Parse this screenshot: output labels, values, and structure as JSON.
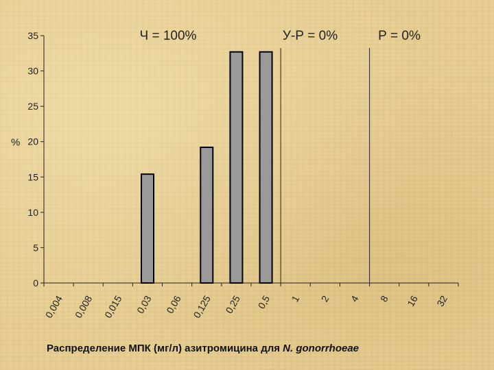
{
  "chart_data": {
    "type": "bar",
    "categories": [
      "0,004",
      "0,008",
      "0,015",
      "0,03",
      "0,06",
      "0,125",
      "0,25",
      "0,5",
      "1",
      "2",
      "4",
      "8",
      "16",
      "32"
    ],
    "values": [
      0,
      0,
      0,
      15.4,
      0,
      19.2,
      32.7,
      32.7,
      0,
      0,
      0,
      0,
      0,
      0
    ],
    "ylabel": "%",
    "ylim": [
      0,
      35
    ],
    "yticks": [
      0,
      5,
      10,
      15,
      20,
      25,
      30,
      35
    ],
    "grid": false,
    "colors": {
      "bar": "#9a9a9a",
      "bar_edge": "#000000",
      "axis": "#222222"
    },
    "breakpoints": [
      {
        "after_category": "0,5",
        "label": "Ч = 100%"
      },
      {
        "after_category": "4",
        "label": "У-Р = 0%"
      }
    ],
    "zone_labels": [
      "Ч = 100%",
      "У-Р = 0%",
      "Р = 0%"
    ]
  },
  "caption": {
    "main": "Распределение МПК (мг/л) азитромицина для ",
    "species": "N. gonorrhoeae"
  }
}
